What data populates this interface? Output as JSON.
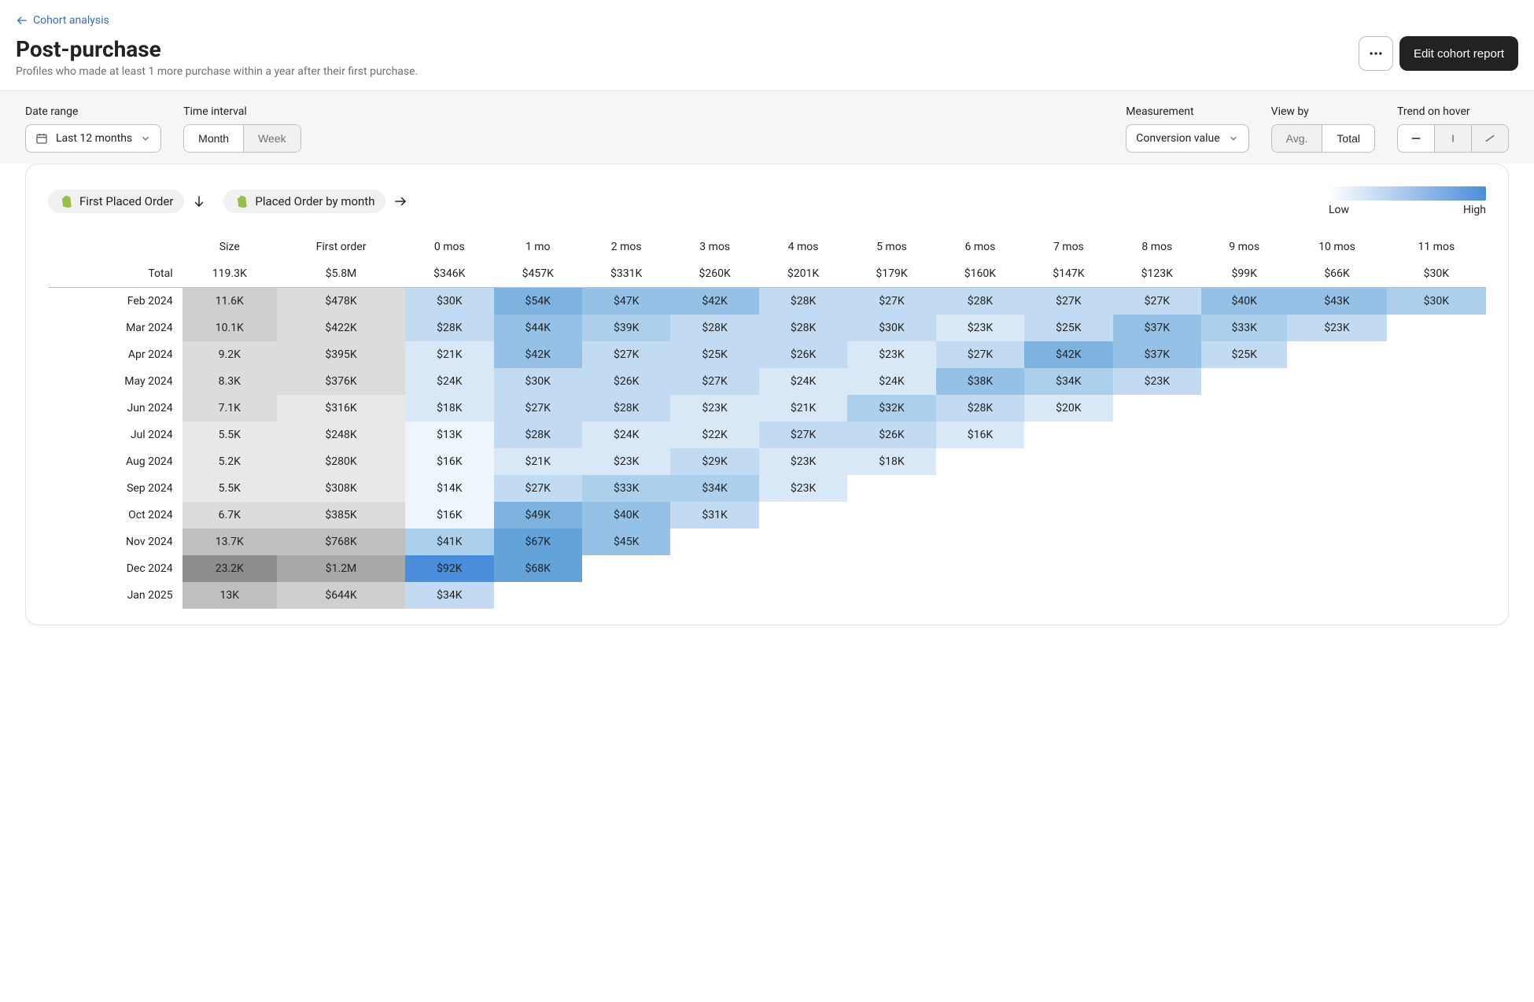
{
  "breadcrumb": {
    "label": "Cohort analysis"
  },
  "page": {
    "title": "Post-purchase",
    "subtitle": "Profiles who made at least 1 more purchase within a year after their first purchase.",
    "edit_button": "Edit cohort report"
  },
  "controls": {
    "date_range": {
      "label": "Date range",
      "value": "Last 12 months"
    },
    "time_interval": {
      "label": "Time interval",
      "options": [
        "Month",
        "Week"
      ],
      "active": "Month"
    },
    "measurement": {
      "label": "Measurement",
      "value": "Conversion value"
    },
    "view_by": {
      "label": "View by",
      "options": [
        "Avg.",
        "Total"
      ],
      "active": "Total"
    },
    "trend": {
      "label": "Trend on hover"
    }
  },
  "breakdown": {
    "first": "First Placed Order",
    "second": "Placed Order by month"
  },
  "legend": {
    "low": "Low",
    "high": "High"
  },
  "heatmap": {
    "gradient_low": "#ffffff",
    "gradient_high": "#4a8ddb",
    "cell_colors": {
      "blue1": "#eef5fc",
      "blue2": "#d9e8f7",
      "blue3": "#c3dbf2",
      "blue4": "#accfec",
      "blue5": "#95c1e6",
      "blue6": "#7eb3e0",
      "blue7": "#63a3da",
      "blue8": "#4a8ddb",
      "grey1": "#f3f3f3",
      "grey2": "#e8e8e8",
      "grey3": "#dcdcdc",
      "grey4": "#cfcfcf",
      "grey5": "#bfbfbf",
      "grey6": "#a8a8a8",
      "grey7": "#8d8d8d"
    }
  },
  "columns": [
    "Size",
    "First order",
    "0 mos",
    "1 mo",
    "2 mos",
    "3 mos",
    "4 mos",
    "5 mos",
    "6 mos",
    "7 mos",
    "8 mos",
    "9 mos",
    "10 mos",
    "11 mos"
  ],
  "total_row": {
    "label": "Total",
    "values": [
      "119.3K",
      "$5.8M",
      "$346K",
      "$457K",
      "$331K",
      "$260K",
      "$201K",
      "$179K",
      "$160K",
      "$147K",
      "$123K",
      "$99K",
      "$66K",
      "$30K"
    ]
  },
  "rows": [
    {
      "label": "Feb 2024",
      "cells": [
        {
          "v": "11.6K",
          "c": "grey4"
        },
        {
          "v": "$478K",
          "c": "grey3"
        },
        {
          "v": "$30K",
          "c": "blue3"
        },
        {
          "v": "$54K",
          "c": "blue6"
        },
        {
          "v": "$47K",
          "c": "blue5"
        },
        {
          "v": "$42K",
          "c": "blue5"
        },
        {
          "v": "$28K",
          "c": "blue3"
        },
        {
          "v": "$27K",
          "c": "blue3"
        },
        {
          "v": "$28K",
          "c": "blue3"
        },
        {
          "v": "$27K",
          "c": "blue3"
        },
        {
          "v": "$27K",
          "c": "blue3"
        },
        {
          "v": "$40K",
          "c": "blue5"
        },
        {
          "v": "$43K",
          "c": "blue5"
        },
        {
          "v": "$30K",
          "c": "blue4"
        }
      ]
    },
    {
      "label": "Mar 2024",
      "cells": [
        {
          "v": "10.1K",
          "c": "grey4"
        },
        {
          "v": "$422K",
          "c": "grey3"
        },
        {
          "v": "$28K",
          "c": "blue3"
        },
        {
          "v": "$44K",
          "c": "blue5"
        },
        {
          "v": "$39K",
          "c": "blue4"
        },
        {
          "v": "$28K",
          "c": "blue3"
        },
        {
          "v": "$28K",
          "c": "blue3"
        },
        {
          "v": "$30K",
          "c": "blue3"
        },
        {
          "v": "$23K",
          "c": "blue2"
        },
        {
          "v": "$25K",
          "c": "blue3"
        },
        {
          "v": "$37K",
          "c": "blue5"
        },
        {
          "v": "$33K",
          "c": "blue4"
        },
        {
          "v": "$23K",
          "c": "blue3"
        }
      ]
    },
    {
      "label": "Apr 2024",
      "cells": [
        {
          "v": "9.2K",
          "c": "grey3"
        },
        {
          "v": "$395K",
          "c": "grey3"
        },
        {
          "v": "$21K",
          "c": "blue2"
        },
        {
          "v": "$42K",
          "c": "blue5"
        },
        {
          "v": "$27K",
          "c": "blue3"
        },
        {
          "v": "$25K",
          "c": "blue3"
        },
        {
          "v": "$26K",
          "c": "blue3"
        },
        {
          "v": "$23K",
          "c": "blue2"
        },
        {
          "v": "$27K",
          "c": "blue3"
        },
        {
          "v": "$42K",
          "c": "blue6"
        },
        {
          "v": "$37K",
          "c": "blue5"
        },
        {
          "v": "$25K",
          "c": "blue3"
        }
      ]
    },
    {
      "label": "May 2024",
      "cells": [
        {
          "v": "8.3K",
          "c": "grey3"
        },
        {
          "v": "$376K",
          "c": "grey3"
        },
        {
          "v": "$24K",
          "c": "blue2"
        },
        {
          "v": "$30K",
          "c": "blue3"
        },
        {
          "v": "$26K",
          "c": "blue3"
        },
        {
          "v": "$27K",
          "c": "blue3"
        },
        {
          "v": "$24K",
          "c": "blue2"
        },
        {
          "v": "$24K",
          "c": "blue2"
        },
        {
          "v": "$38K",
          "c": "blue5"
        },
        {
          "v": "$34K",
          "c": "blue4"
        },
        {
          "v": "$23K",
          "c": "blue3"
        }
      ]
    },
    {
      "label": "Jun 2024",
      "cells": [
        {
          "v": "7.1K",
          "c": "grey3"
        },
        {
          "v": "$316K",
          "c": "grey2"
        },
        {
          "v": "$18K",
          "c": "blue2"
        },
        {
          "v": "$27K",
          "c": "blue3"
        },
        {
          "v": "$28K",
          "c": "blue3"
        },
        {
          "v": "$23K",
          "c": "blue2"
        },
        {
          "v": "$21K",
          "c": "blue2"
        },
        {
          "v": "$32K",
          "c": "blue4"
        },
        {
          "v": "$28K",
          "c": "blue3"
        },
        {
          "v": "$20K",
          "c": "blue2"
        }
      ]
    },
    {
      "label": "Jul 2024",
      "cells": [
        {
          "v": "5.5K",
          "c": "grey2"
        },
        {
          "v": "$248K",
          "c": "grey2"
        },
        {
          "v": "$13K",
          "c": "blue1"
        },
        {
          "v": "$28K",
          "c": "blue3"
        },
        {
          "v": "$24K",
          "c": "blue2"
        },
        {
          "v": "$22K",
          "c": "blue2"
        },
        {
          "v": "$27K",
          "c": "blue3"
        },
        {
          "v": "$26K",
          "c": "blue3"
        },
        {
          "v": "$16K",
          "c": "blue2"
        }
      ]
    },
    {
      "label": "Aug 2024",
      "cells": [
        {
          "v": "5.2K",
          "c": "grey2"
        },
        {
          "v": "$280K",
          "c": "grey2"
        },
        {
          "v": "$16K",
          "c": "blue1"
        },
        {
          "v": "$21K",
          "c": "blue2"
        },
        {
          "v": "$23K",
          "c": "blue2"
        },
        {
          "v": "$29K",
          "c": "blue3"
        },
        {
          "v": "$23K",
          "c": "blue2"
        },
        {
          "v": "$18K",
          "c": "blue2"
        }
      ]
    },
    {
      "label": "Sep 2024",
      "cells": [
        {
          "v": "5.5K",
          "c": "grey2"
        },
        {
          "v": "$308K",
          "c": "grey2"
        },
        {
          "v": "$14K",
          "c": "blue1"
        },
        {
          "v": "$27K",
          "c": "blue3"
        },
        {
          "v": "$33K",
          "c": "blue4"
        },
        {
          "v": "$34K",
          "c": "blue4"
        },
        {
          "v": "$23K",
          "c": "blue2"
        }
      ]
    },
    {
      "label": "Oct 2024",
      "cells": [
        {
          "v": "6.7K",
          "c": "grey3"
        },
        {
          "v": "$385K",
          "c": "grey3"
        },
        {
          "v": "$16K",
          "c": "blue1"
        },
        {
          "v": "$49K",
          "c": "blue6"
        },
        {
          "v": "$40K",
          "c": "blue5"
        },
        {
          "v": "$31K",
          "c": "blue3"
        }
      ]
    },
    {
      "label": "Nov 2024",
      "cells": [
        {
          "v": "13.7K",
          "c": "grey5"
        },
        {
          "v": "$768K",
          "c": "grey5"
        },
        {
          "v": "$41K",
          "c": "blue4"
        },
        {
          "v": "$67K",
          "c": "blue7"
        },
        {
          "v": "$45K",
          "c": "blue5"
        }
      ]
    },
    {
      "label": "Dec 2024",
      "cells": [
        {
          "v": "23.2K",
          "c": "grey7"
        },
        {
          "v": "$1.2M",
          "c": "grey6"
        },
        {
          "v": "$92K",
          "c": "blue8"
        },
        {
          "v": "$68K",
          "c": "blue7"
        }
      ]
    },
    {
      "label": "Jan 2025",
      "cells": [
        {
          "v": "13K",
          "c": "grey5"
        },
        {
          "v": "$644K",
          "c": "grey4"
        },
        {
          "v": "$34K",
          "c": "blue3"
        }
      ]
    }
  ]
}
